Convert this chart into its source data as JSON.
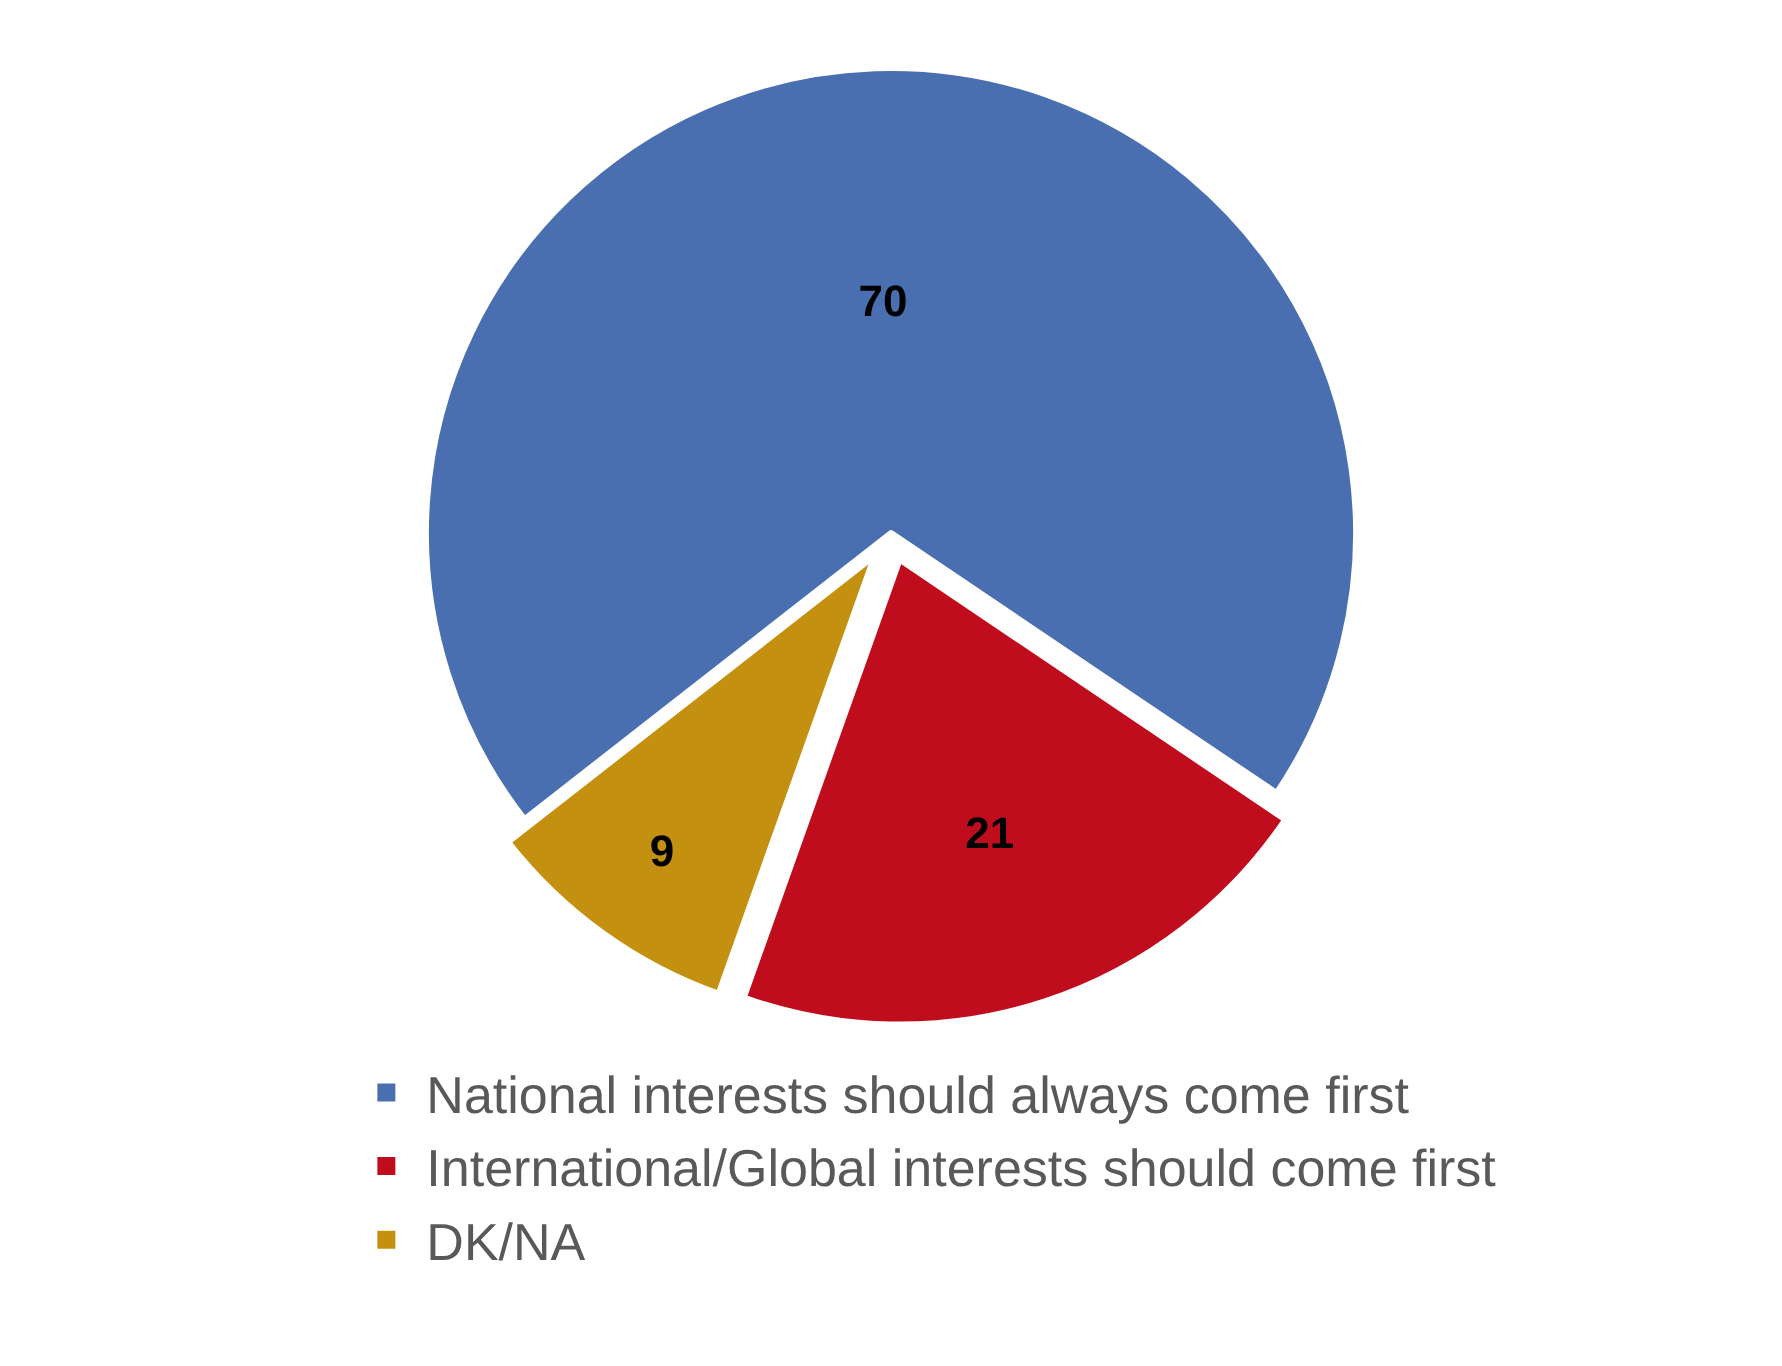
{
  "chart_data": {
    "type": "pie",
    "categories": [
      "National interests should always come first",
      "International/Global interests should come first",
      "DK/NA"
    ],
    "values": [
      70,
      21,
      9
    ],
    "colors": [
      "#4a6fb0",
      "#c00d1e",
      "#c4900f"
    ],
    "data_labels": true,
    "legend": "bottom"
  }
}
